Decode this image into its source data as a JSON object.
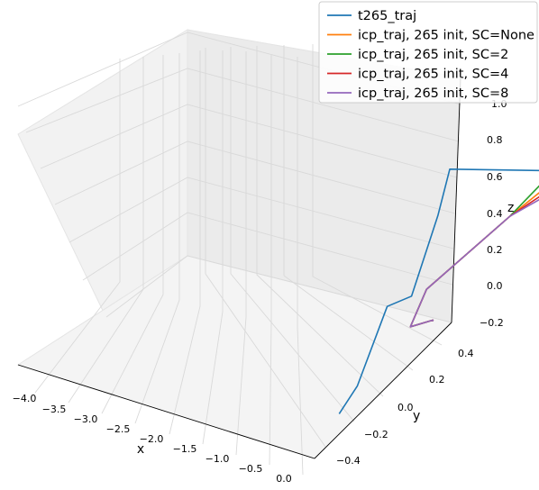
{
  "chart_data": {
    "type": "line",
    "projection": "3d",
    "xlabel": "x",
    "ylabel": "y",
    "zlabel": "z",
    "xlim": [
      -4.1,
      0.1
    ],
    "ylim": [
      -0.5,
      0.5
    ],
    "zlim": [
      -0.2,
      1.0
    ],
    "x_ticks": [
      "−4.0",
      "−3.5",
      "−3.0",
      "−2.5",
      "−2.0",
      "−1.5",
      "−1.0",
      "−0.5",
      "0.0"
    ],
    "y_ticks": [
      "−0.4",
      "−0.2",
      "0.0",
      "0.2",
      "0.4"
    ],
    "z_ticks": [
      "−0.2",
      "0.0",
      "0.2",
      "0.4",
      "0.6",
      "0.8",
      "1.0"
    ],
    "grid": true,
    "legend_position": "top-right",
    "series": [
      {
        "name": "t265_traj",
        "color": "#1f77b4",
        "x": [
          0.0,
          0.0,
          -0.1,
          -0.25,
          -0.3,
          -0.35,
          -1.3,
          -1.85,
          -2.15,
          -2.45,
          -2.6,
          -3.45,
          -3.45,
          -3.55,
          -4.0,
          -3.7
        ],
        "y": [
          -0.38,
          -0.25,
          -0.1,
          0.0,
          0.15,
          0.2,
          0.42,
          0.42,
          0.42,
          0.4,
          0.35,
          0.1,
          0.0,
          -0.05,
          -0.1,
          -0.05
        ],
        "z": [
          -0.05,
          0.0,
          0.3,
          0.3,
          0.6,
          0.8,
          0.75,
          0.75,
          0.8,
          0.8,
          0.85,
          0.8,
          0.6,
          0.4,
          0.2,
          0.18
        ]
      },
      {
        "name": "icp_traj, 265 init, SC=None",
        "color": "#ff7f0e",
        "x": [
          0.0,
          -0.1,
          -0.25,
          -0.55,
          -1.4,
          -1.7,
          -1.9,
          -2.1,
          -2.65,
          -2.55,
          -3.1
        ],
        "y": [
          0.3,
          0.25,
          0.0,
          -0.05,
          0.1,
          0.25,
          0.4,
          0.45,
          0.6,
          0.5,
          0.4
        ],
        "z": [
          -0.05,
          0.0,
          0.15,
          0.4,
          0.75,
          0.85,
          0.85,
          0.9,
          0.8,
          0.55,
          0.55
        ]
      },
      {
        "name": "icp_traj, 265 init, SC=2",
        "color": "#2ca02c",
        "x": [
          0.0,
          -0.1,
          -0.25,
          -0.55,
          -1.4,
          -1.7,
          -1.9,
          -2.1,
          -2.65,
          -2.55,
          -3.1
        ],
        "y": [
          0.3,
          0.25,
          0.0,
          -0.05,
          0.1,
          0.25,
          0.4,
          0.45,
          0.6,
          0.5,
          0.4
        ],
        "z": [
          -0.05,
          0.0,
          0.15,
          0.4,
          0.75,
          0.9,
          0.9,
          0.95,
          0.82,
          0.57,
          0.57
        ]
      },
      {
        "name": "icp_traj, 265 init, SC=4",
        "color": "#d62728",
        "x": [
          0.0,
          -0.1,
          -0.25,
          -0.55,
          -1.4,
          -1.7,
          -1.9,
          -2.1,
          -2.65,
          -2.55,
          -3.1
        ],
        "y": [
          0.3,
          0.25,
          0.0,
          -0.05,
          0.1,
          0.25,
          0.4,
          0.45,
          0.6,
          0.5,
          0.4
        ],
        "z": [
          -0.05,
          0.0,
          0.15,
          0.4,
          0.75,
          0.82,
          0.85,
          0.88,
          0.75,
          0.5,
          0.5
        ]
      },
      {
        "name": "icp_traj, 265 init, SC=8",
        "color": "#9467bd",
        "x": [
          0.0,
          -0.1,
          -0.25,
          -0.55,
          -1.4,
          -1.7,
          -1.9,
          -2.1,
          -2.65,
          -2.55,
          -3.1
        ],
        "y": [
          0.3,
          0.25,
          0.0,
          -0.05,
          0.1,
          0.25,
          0.4,
          0.45,
          0.6,
          0.5,
          0.4
        ],
        "z": [
          -0.05,
          0.0,
          0.15,
          0.4,
          0.75,
          0.8,
          0.82,
          0.85,
          0.7,
          0.45,
          0.45
        ]
      }
    ]
  }
}
